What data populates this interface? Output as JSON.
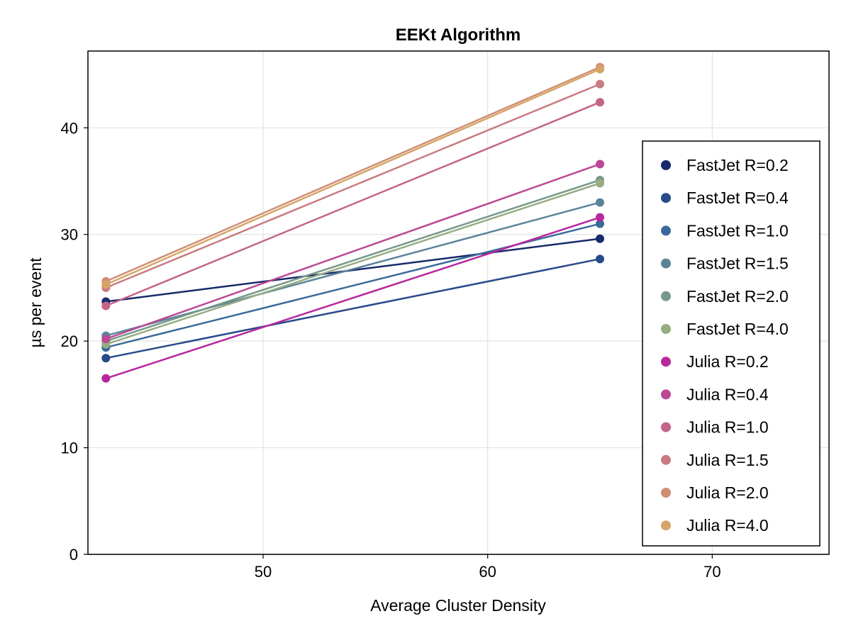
{
  "chart_data": {
    "type": "line",
    "title": "EEKt Algorithm",
    "xlabel": "Average Cluster Density",
    "ylabel": "µs per event",
    "xlim": [
      42.2,
      75.2
    ],
    "ylim": [
      0,
      47.2
    ],
    "xticks": [
      50,
      60,
      70
    ],
    "yticks": [
      0,
      10,
      20,
      30,
      40
    ],
    "grid": true,
    "legend_position": "right",
    "x": [
      43,
      65
    ],
    "series": [
      {
        "name": "FastJet R=0.2",
        "color": "#172a6b",
        "values": [
          23.7,
          29.6
        ]
      },
      {
        "name": "FastJet R=0.4",
        "color": "#274a88",
        "values": [
          18.4,
          27.7
        ]
      },
      {
        "name": "FastJet R=1.0",
        "color": "#3a6a9a",
        "values": [
          19.4,
          31.0
        ]
      },
      {
        "name": "FastJet R=1.5",
        "color": "#5a8399",
        "values": [
          20.5,
          33.0
        ]
      },
      {
        "name": "FastJet R=2.0",
        "color": "#77988a",
        "values": [
          20.0,
          35.1
        ]
      },
      {
        "name": "FastJet R=4.0",
        "color": "#97ad82",
        "values": [
          19.7,
          34.8
        ]
      },
      {
        "name": "Julia R=0.2",
        "color": "#b7289e",
        "values": [
          16.5,
          31.6
        ]
      },
      {
        "name": "Julia R=0.4",
        "color": "#bb4895",
        "values": [
          20.2,
          36.6
        ]
      },
      {
        "name": "Julia R=1.0",
        "color": "#c36488",
        "values": [
          23.3,
          42.4
        ]
      },
      {
        "name": "Julia R=1.5",
        "color": "#c97b80",
        "values": [
          25.0,
          44.1
        ]
      },
      {
        "name": "Julia R=2.0",
        "color": "#cf8e72",
        "values": [
          25.6,
          45.7
        ]
      },
      {
        "name": "Julia R=4.0",
        "color": "#d5a567",
        "values": [
          25.3,
          45.5
        ]
      }
    ]
  }
}
